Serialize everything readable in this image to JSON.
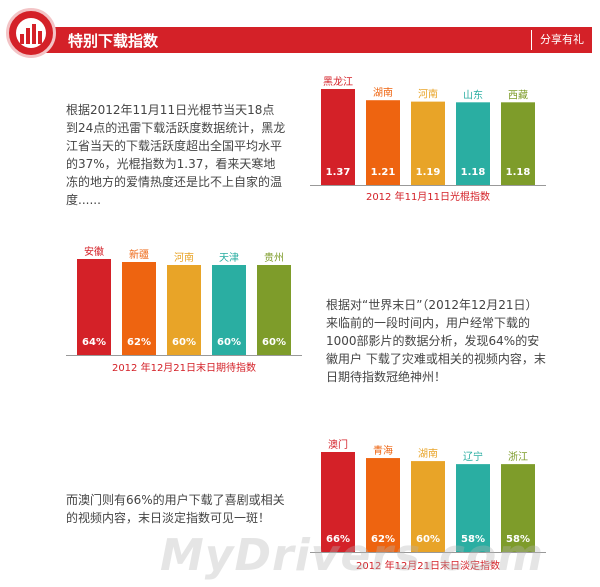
{
  "header": {
    "title": "特别下载指数",
    "share_label": "分享有礼"
  },
  "texts": {
    "desc1": "根据2012年11月11日光棍节当天18点到24点的迅雷下载活跃度数据统计，黑龙江省当天的下载活跃度超出全国平均水平的37%，光棍指数为1.37，看来天寒地冻的地方的爱情热度还是比不上自家的温度......",
    "desc2": "根据对“世界末日”（2012年12月21日）来临前的一段时间内，用户经常下载的1000部影片的数据分析，发现64%的安徽用户 下载了灾难或相关的视频内容，末日期待指数冠绝神州！",
    "desc3": "而澳门则有66%的用户下载了喜剧或相关的视频内容，末日淡定指数可见一斑！"
  },
  "watermark": "MyDrivers.com",
  "colors": {
    "brand": "#d42128",
    "bar1": "#d42128",
    "bar2": "#ee6410",
    "bar3": "#e8a428",
    "bar4": "#2aaea2",
    "bar5": "#7e9c2a"
  },
  "chart_data": [
    {
      "type": "bar",
      "title": "2012 年11月11日光棍指数",
      "categories": [
        "黑龙江",
        "湖南",
        "河南",
        "山东",
        "西藏"
      ],
      "values": [
        1.37,
        1.21,
        1.19,
        1.18,
        1.18
      ],
      "value_labels": [
        "1.37",
        "1.21",
        "1.19",
        "1.18",
        "1.18"
      ],
      "ylim": [
        0,
        1.37
      ]
    },
    {
      "type": "bar",
      "title": "2012 年12月21日末日期待指数",
      "categories": [
        "安徽",
        "新疆",
        "河南",
        "天津",
        "贵州"
      ],
      "values": [
        64,
        62,
        60,
        60,
        60
      ],
      "value_labels": [
        "64%",
        "62%",
        "60%",
        "60%",
        "60%"
      ],
      "ylim": [
        0,
        64
      ]
    },
    {
      "type": "bar",
      "title": "2012 年12月21日末日淡定指数",
      "categories": [
        "澳门",
        "青海",
        "湖南",
        "辽宁",
        "浙江"
      ],
      "values": [
        66,
        62,
        60,
        58,
        58
      ],
      "value_labels": [
        "66%",
        "62%",
        "60%",
        "58%",
        "58%"
      ],
      "ylim": [
        0,
        66
      ]
    }
  ]
}
